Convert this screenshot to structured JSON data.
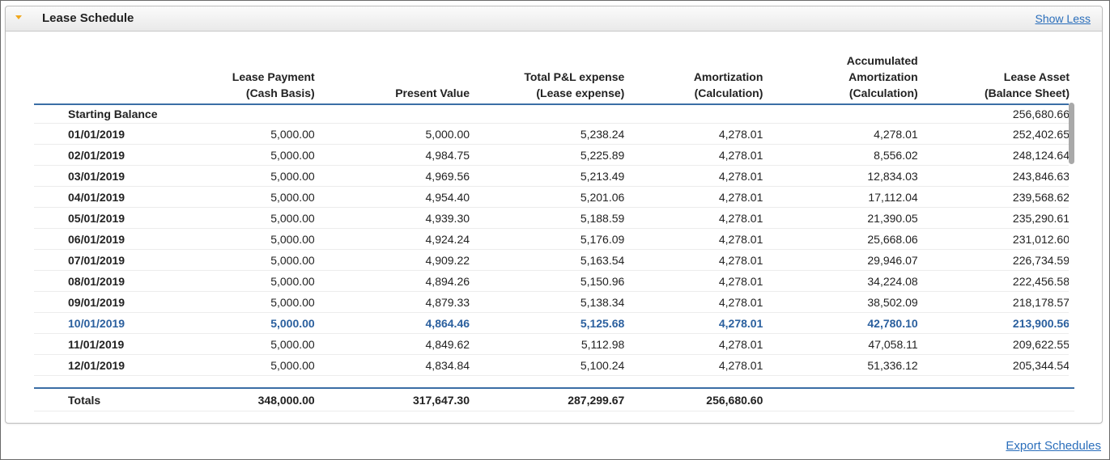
{
  "panel": {
    "title": "Lease Schedule",
    "show_less_label": "Show Less",
    "toggle_icon": "chevron-down-icon",
    "toggle_color": "#f0a81e"
  },
  "table": {
    "headers": [
      "",
      "Lease Payment\n(Cash Basis)",
      "Present Value",
      "Total P&L expense\n(Lease expense)",
      "Amortization\n(Calculation)",
      "Accumulated\nAmortization\n(Calculation)",
      "Lease Asset\n(Balance Sheet)"
    ],
    "starting_balance": {
      "label": "Starting Balance",
      "lease_asset": "256,680.66"
    },
    "rows": [
      [
        "01/01/2019",
        "5,000.00",
        "5,000.00",
        "5,238.24",
        "4,278.01",
        "4,278.01",
        "252,402.65"
      ],
      [
        "02/01/2019",
        "5,000.00",
        "4,984.75",
        "5,225.89",
        "4,278.01",
        "8,556.02",
        "248,124.64"
      ],
      [
        "03/01/2019",
        "5,000.00",
        "4,969.56",
        "5,213.49",
        "4,278.01",
        "12,834.03",
        "243,846.63"
      ],
      [
        "04/01/2019",
        "5,000.00",
        "4,954.40",
        "5,201.06",
        "4,278.01",
        "17,112.04",
        "239,568.62"
      ],
      [
        "05/01/2019",
        "5,000.00",
        "4,939.30",
        "5,188.59",
        "4,278.01",
        "21,390.05",
        "235,290.61"
      ],
      [
        "06/01/2019",
        "5,000.00",
        "4,924.24",
        "5,176.09",
        "4,278.01",
        "25,668.06",
        "231,012.60"
      ],
      [
        "07/01/2019",
        "5,000.00",
        "4,909.22",
        "5,163.54",
        "4,278.01",
        "29,946.07",
        "226,734.59"
      ],
      [
        "08/01/2019",
        "5,000.00",
        "4,894.26",
        "5,150.96",
        "4,278.01",
        "34,224.08",
        "222,456.58"
      ],
      [
        "09/01/2019",
        "5,000.00",
        "4,879.33",
        "5,138.34",
        "4,278.01",
        "38,502.09",
        "218,178.57"
      ],
      [
        "10/01/2019",
        "5,000.00",
        "4,864.46",
        "5,125.68",
        "4,278.01",
        "42,780.10",
        "213,900.56"
      ],
      [
        "11/01/2019",
        "5,000.00",
        "4,849.62",
        "5,112.98",
        "4,278.01",
        "47,058.11",
        "209,622.55"
      ],
      [
        "12/01/2019",
        "5,000.00",
        "4,834.84",
        "5,100.24",
        "4,278.01",
        "51,336.12",
        "205,344.54"
      ]
    ],
    "highlight_color": "#2a5f9e",
    "totals": {
      "label": "Totals",
      "lease_payment": "348,000.00",
      "present_value": "317,647.30",
      "total_pl": "287,299.67",
      "amortization": "256,680.60"
    }
  },
  "footer": {
    "export_label": "Export Schedules"
  },
  "colors": {
    "link": "#2a6ebb",
    "rule": "#3b6ea5"
  }
}
